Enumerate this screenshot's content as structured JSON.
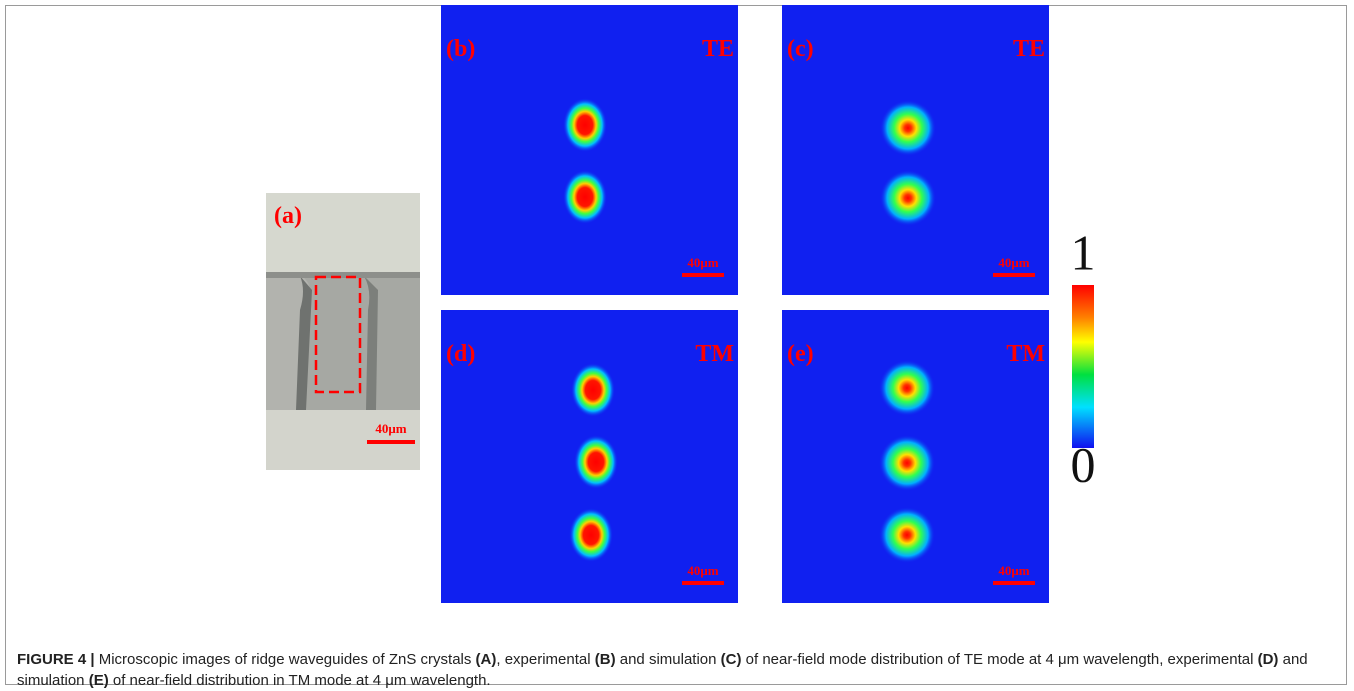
{
  "panels": [
    {
      "label": "(a)",
      "scale_bar": "40μm"
    },
    {
      "label": "(b)",
      "mode": "TE",
      "scale_bar": "40μm"
    },
    {
      "label": "(c)",
      "mode": "TE",
      "scale_bar": "40μm"
    },
    {
      "label": "(d)",
      "mode": "TM",
      "scale_bar": "40μm"
    },
    {
      "label": "(e)",
      "mode": "TM",
      "scale_bar": "40μm"
    }
  ],
  "colorbar": {
    "max": "1",
    "min": "0"
  },
  "caption": {
    "figure_label": "FIGURE 4 |",
    "segments": [
      {
        "text": " Microscopic images of ridge waveguides of ZnS crystals ",
        "bold": false
      },
      {
        "text": "(A)",
        "bold": true
      },
      {
        "text": ", experimental ",
        "bold": false
      },
      {
        "text": "(B)",
        "bold": true
      },
      {
        "text": " and simulation ",
        "bold": false
      },
      {
        "text": "(C)",
        "bold": true
      },
      {
        "text": " of near-field mode distribution of TE mode at 4 μm wavelength, experimental ",
        "bold": false
      },
      {
        "text": "(D)",
        "bold": true
      },
      {
        "text": " and simulation ",
        "bold": false
      },
      {
        "text": "(E)",
        "bold": true
      },
      {
        "text": " of near-field distribution in TM mode at 4 μm wavelength.",
        "bold": false
      }
    ]
  }
}
